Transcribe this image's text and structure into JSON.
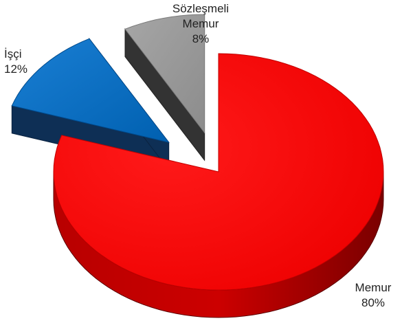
{
  "chart_data": {
    "type": "pie",
    "style": "3d-exploded",
    "slices": [
      {
        "label": "Memur",
        "label_lines": [
          "Memur"
        ],
        "value_label": "80%",
        "value": 80,
        "color": "#ff0000"
      },
      {
        "label": "İşçi",
        "label_lines": [
          "İşçi"
        ],
        "value_label": "12%",
        "value": 12,
        "color": "#0070c0"
      },
      {
        "label": "Sözleşmeli Memur",
        "label_lines": [
          "Sözleşmeli",
          "Memur"
        ],
        "value_label": "8%",
        "value": 8,
        "color": "#999999"
      }
    ],
    "legend": "none"
  }
}
